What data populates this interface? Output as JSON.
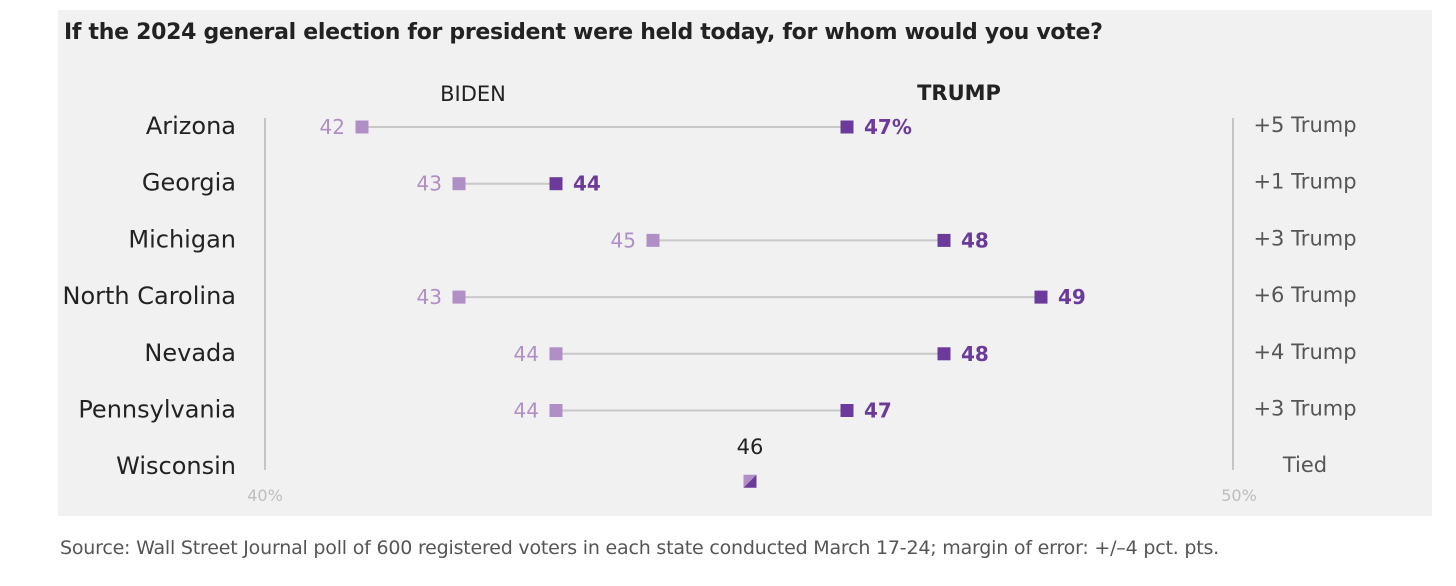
{
  "title": "If the 2024 general election for president were held today, for whom would you vote?",
  "source": "Source: Wall Street Journal poll of 600 registered voters in each state conducted March 17-24; margin of error: +/–4 pct. pts.",
  "colors": {
    "biden": "#b08ec6",
    "trump": "#6b3a9a",
    "connector": "#c8c8c8",
    "axis": "#c4c4c4",
    "label": "#222222",
    "margin": "#555555",
    "panel": "#f1f1f1"
  },
  "chart_data": {
    "type": "dot",
    "title": "If the 2024 general election for president were held today, for whom would you vote?",
    "series_labels": {
      "biden": "BIDEN",
      "trump": "TRUMP"
    },
    "xlim": [
      40,
      50
    ],
    "axis_ticks": [
      "40%",
      "50%"
    ],
    "categories": [
      "Arizona",
      "Georgia",
      "Michigan",
      "North Carolina",
      "Nevada",
      "Pennsylvania",
      "Wisconsin"
    ],
    "series": [
      {
        "name": "BIDEN",
        "values": [
          42,
          43,
          45,
          43,
          44,
          44,
          46
        ]
      },
      {
        "name": "TRUMP",
        "values": [
          47,
          44,
          48,
          49,
          48,
          47,
          46
        ]
      }
    ],
    "biden_labels": [
      "42",
      "43",
      "45",
      "43",
      "44",
      "44",
      ""
    ],
    "trump_labels": [
      "47%",
      "44",
      "48",
      "49",
      "48",
      "47",
      ""
    ],
    "tied_labels": [
      "",
      "",
      "",
      "",
      "",
      "",
      "46"
    ],
    "margins": [
      "+5 Trump",
      "+1 Trump",
      "+3 Trump",
      "+6 Trump",
      "+4 Trump",
      "+3 Trump",
      "Tied"
    ]
  }
}
